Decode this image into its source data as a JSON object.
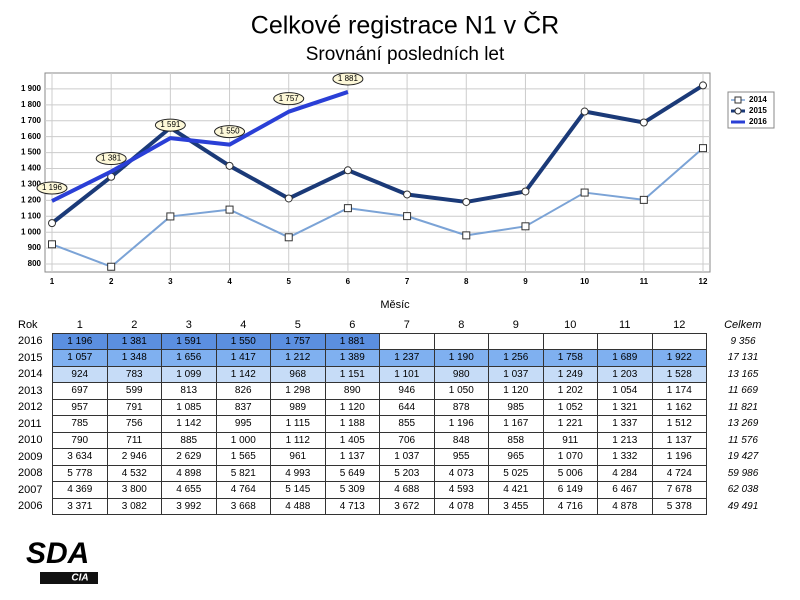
{
  "chart_data": {
    "type": "line",
    "title": "Celkové registrace N1 v ČR",
    "subtitle": "Srovnání posledních let",
    "x_label": "Měsíc",
    "categories": [
      "1",
      "2",
      "3",
      "4",
      "5",
      "6",
      "7",
      "8",
      "9",
      "10",
      "11",
      "12"
    ],
    "series": [
      {
        "name": "2014",
        "color": "#7ba3d6",
        "marker": "square",
        "values": [
          924,
          783,
          1099,
          1142,
          968,
          1151,
          1101,
          980,
          1037,
          1249,
          1203,
          1528
        ]
      },
      {
        "name": "2015",
        "color": "#1b3a78",
        "marker": "circle",
        "values": [
          1057,
          1348,
          1656,
          1417,
          1212,
          1389,
          1237,
          1190,
          1256,
          1758,
          1689,
          1922
        ]
      },
      {
        "name": "2016",
        "color": "#2a3fd6",
        "values": [
          1196,
          1381,
          1591,
          1550,
          1757,
          1881,
          null,
          null,
          null,
          null,
          null,
          null
        ],
        "value_labels": [
          "1 196",
          "1 381",
          "1 591",
          "1 550",
          "1 757",
          "1 881",
          null,
          null,
          null,
          null,
          null,
          null
        ]
      }
    ],
    "ylim": [
      750,
      2000
    ],
    "yticks": [
      800,
      900,
      {
        "value": 1000,
        "label": "1 000"
      },
      {
        "value": 1100,
        "label": "1 100"
      },
      {
        "value": 1200,
        "label": "1 200"
      },
      {
        "value": 1300,
        "label": "1 300"
      },
      {
        "value": 1400,
        "label": "1 400"
      },
      {
        "value": 1500,
        "label": "1 500"
      },
      {
        "value": 1600,
        "label": "1 600"
      },
      {
        "value": 1700,
        "label": "1 700"
      },
      {
        "value": 1800,
        "label": "1 800"
      },
      {
        "value": 1900,
        "label": "1 900"
      }
    ],
    "grid": true,
    "legend": "upper right"
  },
  "table": {
    "header": {
      "year": "Rok",
      "months": [
        "1",
        "2",
        "3",
        "4",
        "5",
        "6",
        "7",
        "8",
        "9",
        "10",
        "11",
        "12"
      ],
      "total": "Celkem"
    },
    "rows": [
      {
        "year": "2016",
        "months": [
          "1 196",
          "1 381",
          "1 591",
          "1 550",
          "1 757",
          "1 881"
        ],
        "total": "9 356"
      },
      {
        "year": "2015",
        "months": [
          "1 057",
          "1 348",
          "1 656",
          "1 417",
          "1 212",
          "1 389",
          "1 237",
          "1 190",
          "1 256",
          "1 758",
          "1 689",
          "1 922"
        ],
        "total": "17 131"
      },
      {
        "year": "2014",
        "months": [
          "924",
          "783",
          "1 099",
          "1 142",
          "968",
          "1 151",
          "1 101",
          "980",
          "1 037",
          "1 249",
          "1 203",
          "1 528"
        ],
        "total": "13 165"
      },
      {
        "year": "2013",
        "months": [
          "697",
          "599",
          "813",
          "826",
          "1 298",
          "890",
          "946",
          "1 050",
          "1 120",
          "1 202",
          "1 054",
          "1 174"
        ],
        "total": "11 669"
      },
      {
        "year": "2012",
        "months": [
          "957",
          "791",
          "1 085",
          "837",
          "989",
          "1 120",
          "644",
          "878",
          "985",
          "1 052",
          "1 321",
          "1 162"
        ],
        "total": "11 821"
      },
      {
        "year": "2011",
        "months": [
          "785",
          "756",
          "1 142",
          "995",
          "1 115",
          "1 188",
          "855",
          "1 196",
          "1 167",
          "1 221",
          "1 337",
          "1 512"
        ],
        "total": "13 269"
      },
      {
        "year": "2010",
        "months": [
          "790",
          "711",
          "885",
          "1 000",
          "1 112",
          "1 405",
          "706",
          "848",
          "858",
          "911",
          "1 213",
          "1 137"
        ],
        "total": "11 576"
      },
      {
        "year": "2009",
        "months": [
          "3 634",
          "2 946",
          "2 629",
          "1 565",
          "961",
          "1 137",
          "1 037",
          "955",
          "965",
          "1 070",
          "1 332",
          "1 196"
        ],
        "total": "19 427"
      },
      {
        "year": "2008",
        "months": [
          "5 778",
          "4 532",
          "4 898",
          "5 821",
          "4 993",
          "5 649",
          "5 203",
          "4 073",
          "5 025",
          "5 006",
          "4 284",
          "4 724"
        ],
        "total": "59 986"
      },
      {
        "year": "2007",
        "months": [
          "4 369",
          "3 800",
          "4 655",
          "4 764",
          "5 145",
          "5 309",
          "4 688",
          "4 593",
          "4 421",
          "6 149",
          "6 467",
          "7 678"
        ],
        "total": "62 038"
      },
      {
        "year": "2006",
        "months": [
          "3 371",
          "3 082",
          "3 992",
          "3 668",
          "4 488",
          "4 713",
          "3 672",
          "4 078",
          "3 455",
          "4 716",
          "4 878",
          "5 378"
        ],
        "total": "49 491"
      }
    ]
  },
  "logo": {
    "text": "SDA",
    "sub": "CIA"
  }
}
